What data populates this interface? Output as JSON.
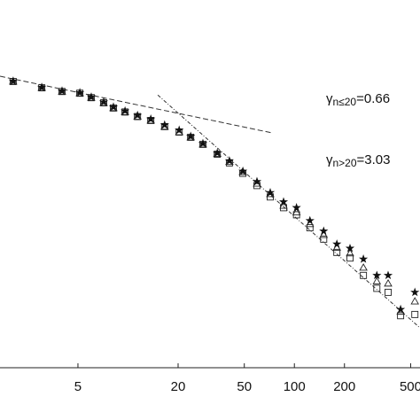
{
  "chart_data": {
    "type": "scatter",
    "xscale": "log",
    "yscale": "log",
    "xlim": [
      1.7,
      569
    ],
    "ylim": [
      1e-05,
      1
    ],
    "xticks": [
      5,
      20,
      50,
      100,
      200,
      500
    ],
    "x": [
      2.04,
      3.03,
      4.01,
      5.13,
      6.01,
      7.14,
      8.17,
      9.59,
      11.4,
      13.7,
      16.6,
      20.3,
      23.8,
      28.2,
      34.4,
      40.7,
      49.0,
      59.6,
      71.6,
      86.1,
      103,
      124,
      150,
      180,
      216,
      260,
      313,
      366,
      435,
      530
    ],
    "series": [
      {
        "name": "squares",
        "marker": "square",
        "color": "#222",
        "values": [
          0.078,
          0.064,
          0.057,
          0.054,
          0.047,
          0.04,
          0.034,
          0.03,
          0.026,
          0.023,
          0.019,
          0.016,
          0.0136,
          0.0109,
          0.008,
          0.0061,
          0.0044,
          0.003,
          0.0021,
          0.0015,
          0.0012,
          0.0008,
          0.00056,
          0.00037,
          0.00031,
          0.00018,
          0.00012,
          0.000106,
          5.1e-05,
          5.3e-05
        ]
      },
      {
        "name": "triangles",
        "marker": "triangle",
        "color": "#222",
        "values": [
          0.078,
          0.064,
          0.057,
          0.054,
          0.047,
          0.04,
          0.034,
          0.03,
          0.026,
          0.023,
          0.019,
          0.016,
          0.0136,
          0.0109,
          0.0081,
          0.0063,
          0.0046,
          0.0032,
          0.0023,
          0.0016,
          0.0013,
          0.0009,
          0.00064,
          0.00043,
          0.00036,
          0.00023,
          0.00015,
          0.00014,
          5.8e-05,
          8e-05
        ]
      },
      {
        "name": "stars",
        "marker": "star",
        "color": "#111",
        "values": [
          0.079,
          0.065,
          0.058,
          0.055,
          0.048,
          0.041,
          0.035,
          0.031,
          0.027,
          0.024,
          0.02,
          0.017,
          0.014,
          0.0112,
          0.0083,
          0.0065,
          0.0047,
          0.0034,
          0.0024,
          0.0018,
          0.0015,
          0.001,
          0.00072,
          0.00048,
          0.00042,
          0.0003,
          0.00018,
          0.00018,
          6.2e-05,
          0.000106
        ]
      }
    ],
    "fit_lines": [
      {
        "style": "dashed",
        "x": [
          1.7,
          73.4
        ],
        "y": [
          0.092,
          0.0156
        ]
      },
      {
        "style": "dashdot",
        "x": [
          15.1,
          569
        ],
        "y": [
          0.051,
          3.48e-05
        ]
      }
    ],
    "annotations": [
      {
        "symbol": "γ",
        "subscript": "n≤20",
        "text": "=0.66"
      },
      {
        "symbol": "γ",
        "subscript": "n>20",
        "text": "=3.03"
      }
    ]
  }
}
